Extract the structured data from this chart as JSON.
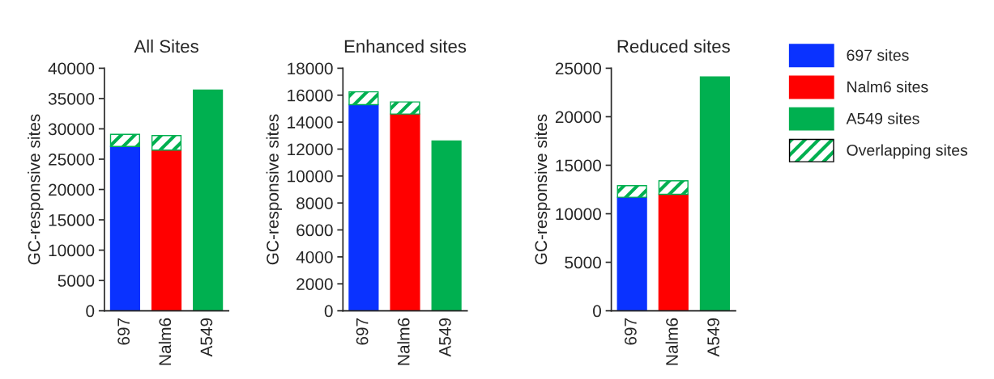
{
  "chart_data": [
    {
      "type": "bar",
      "title": "All Sites",
      "ylabel": "GC-responsive sites",
      "categories": [
        "697",
        "Nalm6",
        "A549"
      ],
      "stacked": true,
      "ylim": [
        0,
        40000
      ],
      "yticks": [
        0,
        5000,
        10000,
        15000,
        20000,
        25000,
        30000,
        35000,
        40000
      ],
      "legend": "right",
      "series": [
        {
          "name": "697 sites",
          "color": "#0a32ff",
          "values": [
            27100,
            null,
            null
          ]
        },
        {
          "name": "Nalm6 sites",
          "color": "#ff0000",
          "values": [
            null,
            26500,
            null
          ]
        },
        {
          "name": "A549 sites",
          "color": "#00b050",
          "values": [
            null,
            null,
            36400
          ]
        },
        {
          "name": "Overlapping sites",
          "color": "#00b050",
          "values": [
            2000,
            2400,
            null
          ]
        }
      ]
    },
    {
      "type": "bar",
      "title": "Enhanced sites",
      "ylabel": "GC-responsive sites",
      "categories": [
        "697",
        "Nalm6",
        "A549"
      ],
      "stacked": true,
      "ylim": [
        0,
        18000
      ],
      "yticks": [
        0,
        2000,
        4000,
        6000,
        8000,
        10000,
        12000,
        14000,
        16000,
        18000
      ],
      "series": [
        {
          "color": "#0a32ff",
          "values": [
            15300,
            null,
            null
          ]
        },
        {
          "color": "#ff0000",
          "values": [
            null,
            14600,
            null
          ]
        },
        {
          "color": "#00b050",
          "values": [
            null,
            null,
            12600
          ]
        },
        {
          "color": "#00b050",
          "values": [
            950,
            900,
            null
          ]
        }
      ]
    },
    {
      "type": "bar",
      "title": "Reduced sites",
      "ylabel": "GC-responsive sites",
      "categories": [
        "697",
        "Nalm6",
        "A549"
      ],
      "stacked": true,
      "ylim": [
        0,
        25000
      ],
      "yticks": [
        0,
        5000,
        10000,
        15000,
        20000,
        25000
      ],
      "series": [
        {
          "color": "#0a32ff",
          "values": [
            11700,
            null,
            null
          ]
        },
        {
          "color": "#ff0000",
          "values": [
            null,
            12000,
            null
          ]
        },
        {
          "color": "#00b050",
          "values": [
            null,
            null,
            24100
          ]
        },
        {
          "color": "#00b050",
          "values": [
            1200,
            1400,
            null
          ]
        }
      ]
    }
  ]
}
